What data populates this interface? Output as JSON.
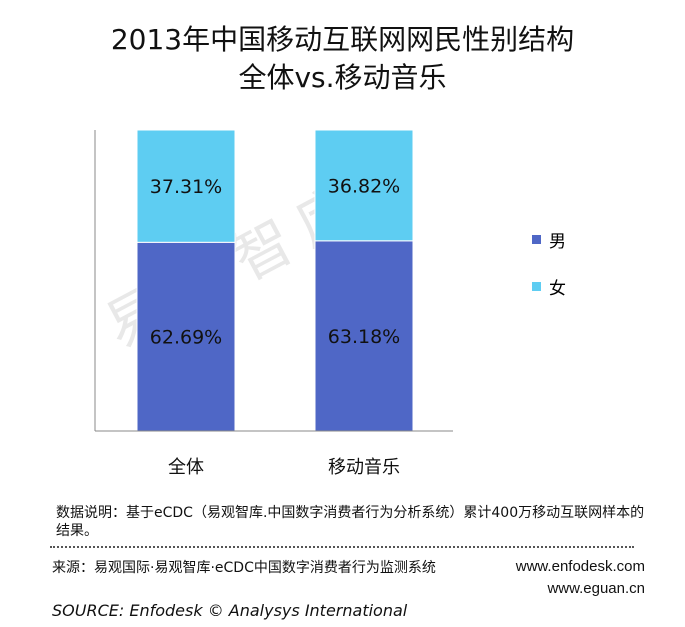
{
  "title_line1": "2013年中国移动互联网网民性别结构",
  "title_line2": "全体vs.移动音乐",
  "watermark": "易观智库",
  "chart_data": {
    "type": "bar",
    "stacked": true,
    "categories": [
      "全体",
      "移动音乐"
    ],
    "series": [
      {
        "name": "男",
        "values": [
          62.69,
          63.18
        ],
        "labels": [
          "62.69%",
          "63.18%"
        ],
        "color": "#4f67c6"
      },
      {
        "name": "女",
        "values": [
          37.31,
          36.82
        ],
        "labels": [
          "37.31%",
          "36.82%"
        ],
        "color": "#5ecdf2"
      }
    ],
    "ylim": [
      0,
      100
    ],
    "grid": false,
    "legend_position": "right"
  },
  "note": "数据说明：基于eCDC（易观智库.中国数字消费者行为分析系统）累计400万移动互联网样本的结果。",
  "source": "来源：易观国际·易观智库·eCDC中国数字消费者行为监测系统",
  "site1": "www.enfodesk.com",
  "site2": "www.eguan.cn",
  "source_en": "SOURCE: Enfodesk © Analysys International"
}
